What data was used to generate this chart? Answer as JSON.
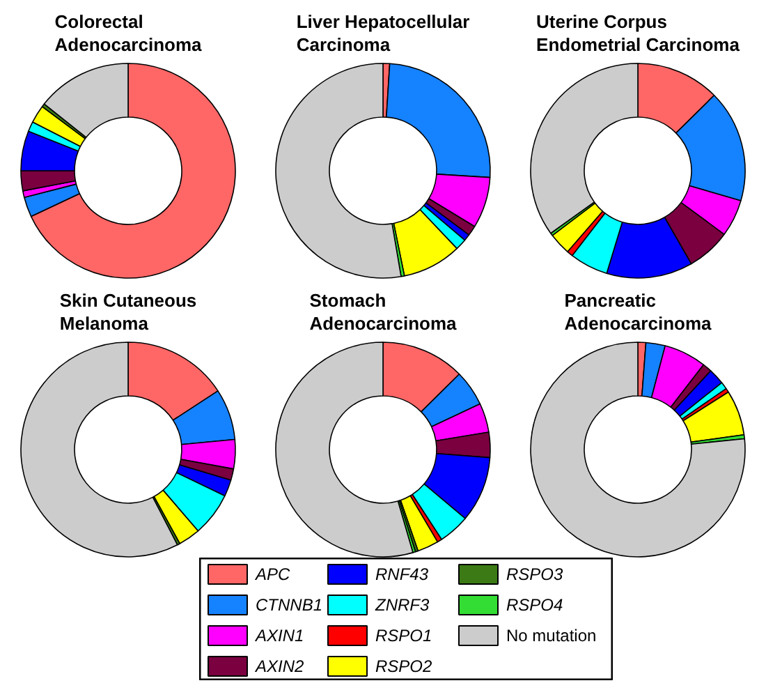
{
  "chart_data": [
    {
      "type": "donut",
      "title": "Colorectal Adenocarcinoma",
      "categories": [
        "APC",
        "CTNNB1",
        "AXIN1",
        "AXIN2",
        "RNF43",
        "ZNRF3",
        "RSPO1",
        "RSPO2",
        "RSPO3",
        "RSPO4",
        "No mutation"
      ],
      "colors": [
        "#ff6666",
        "#1582ff",
        "#ff00ff",
        "#7a0040",
        "#0000ff",
        "#00ffff",
        "#ff0000",
        "#ffff00",
        "#3b7a14",
        "#33dd33",
        "#cccccc"
      ],
      "values": [
        68,
        3,
        1,
        3,
        6,
        1.5,
        0,
        2.7,
        0.5,
        0,
        14.3
      ],
      "legend": "bottom"
    },
    {
      "type": "donut",
      "title": "Liver Hepatocellular Carcinoma",
      "categories": [
        null,
        null,
        null,
        null,
        null,
        null,
        null,
        null,
        null,
        null,
        null
      ],
      "colors": [
        "#ff6666",
        "#1582ff",
        "#ff00ff",
        "#7a0040",
        "#0000ff",
        "#00ffff",
        "#ff0000",
        "#ffff00",
        "#3b7a14",
        "#33dd33",
        "#cccccc"
      ],
      "values": [
        1,
        25,
        7.7,
        1.5,
        1,
        1.7,
        0,
        8.9,
        0,
        0.5,
        52.7
      ]
    },
    {
      "type": "donut",
      "title": "Uterine Corpus Endometrial Carcinoma",
      "categories": [
        null,
        null,
        null,
        null,
        null,
        null,
        null,
        null,
        null,
        null,
        null
      ],
      "colors": [
        "#ff6666",
        "#1582ff",
        "#ff00ff",
        "#7a0040",
        "#0000ff",
        "#00ffff",
        "#ff0000",
        "#ffff00",
        "#3b7a14",
        "#33dd33",
        "#cccccc"
      ],
      "values": [
        12.6,
        16.9,
        5.6,
        6.6,
        13,
        5.8,
        0.9,
        3.3,
        0,
        0.4,
        34.9
      ]
    },
    {
      "type": "donut",
      "title": "Skin Cutaneous Melanoma",
      "categories": [
        null,
        null,
        null,
        null,
        null,
        null,
        null,
        null,
        null,
        null,
        null
      ],
      "colors": [
        "#ff6666",
        "#1582ff",
        "#ff00ff",
        "#7a0040",
        "#0000ff",
        "#00ffff",
        "#ff0000",
        "#ffff00",
        "#3b7a14",
        "#33dd33",
        "#cccccc"
      ],
      "values": [
        15.8,
        7.7,
        4.4,
        1.7,
        2.5,
        6.6,
        0,
        3.3,
        0.4,
        0,
        57.6
      ]
    },
    {
      "type": "donut",
      "title": "Stomach Adenocarcinoma",
      "categories": [
        null,
        null,
        null,
        null,
        null,
        null,
        null,
        null,
        null,
        null,
        null
      ],
      "colors": [
        "#ff6666",
        "#1582ff",
        "#ff00ff",
        "#7a0040",
        "#0000ff",
        "#00ffff",
        "#ff0000",
        "#ffff00",
        "#3b7a14",
        "#33dd33",
        "#cccccc"
      ],
      "values": [
        12.6,
        5.4,
        4.4,
        3.8,
        9.9,
        4.7,
        0.7,
        3.2,
        0.4,
        0.4,
        54.5
      ]
    },
    {
      "type": "donut",
      "title": "Pancreatic Adenocarcinoma",
      "categories": [
        null,
        null,
        null,
        null,
        null,
        null,
        null,
        null,
        null,
        null,
        null
      ],
      "colors": [
        "#ff6666",
        "#1582ff",
        "#ff00ff",
        "#7a0040",
        "#0000ff",
        "#00ffff",
        "#ff0000",
        "#ffff00",
        "#3b7a14",
        "#33dd33",
        "#cccccc"
      ],
      "values": [
        1.2,
        2.9,
        6.4,
        1.4,
        2.4,
        1.1,
        0.6,
        6.8,
        0,
        0.6,
        76.6
      ]
    }
  ]
}
